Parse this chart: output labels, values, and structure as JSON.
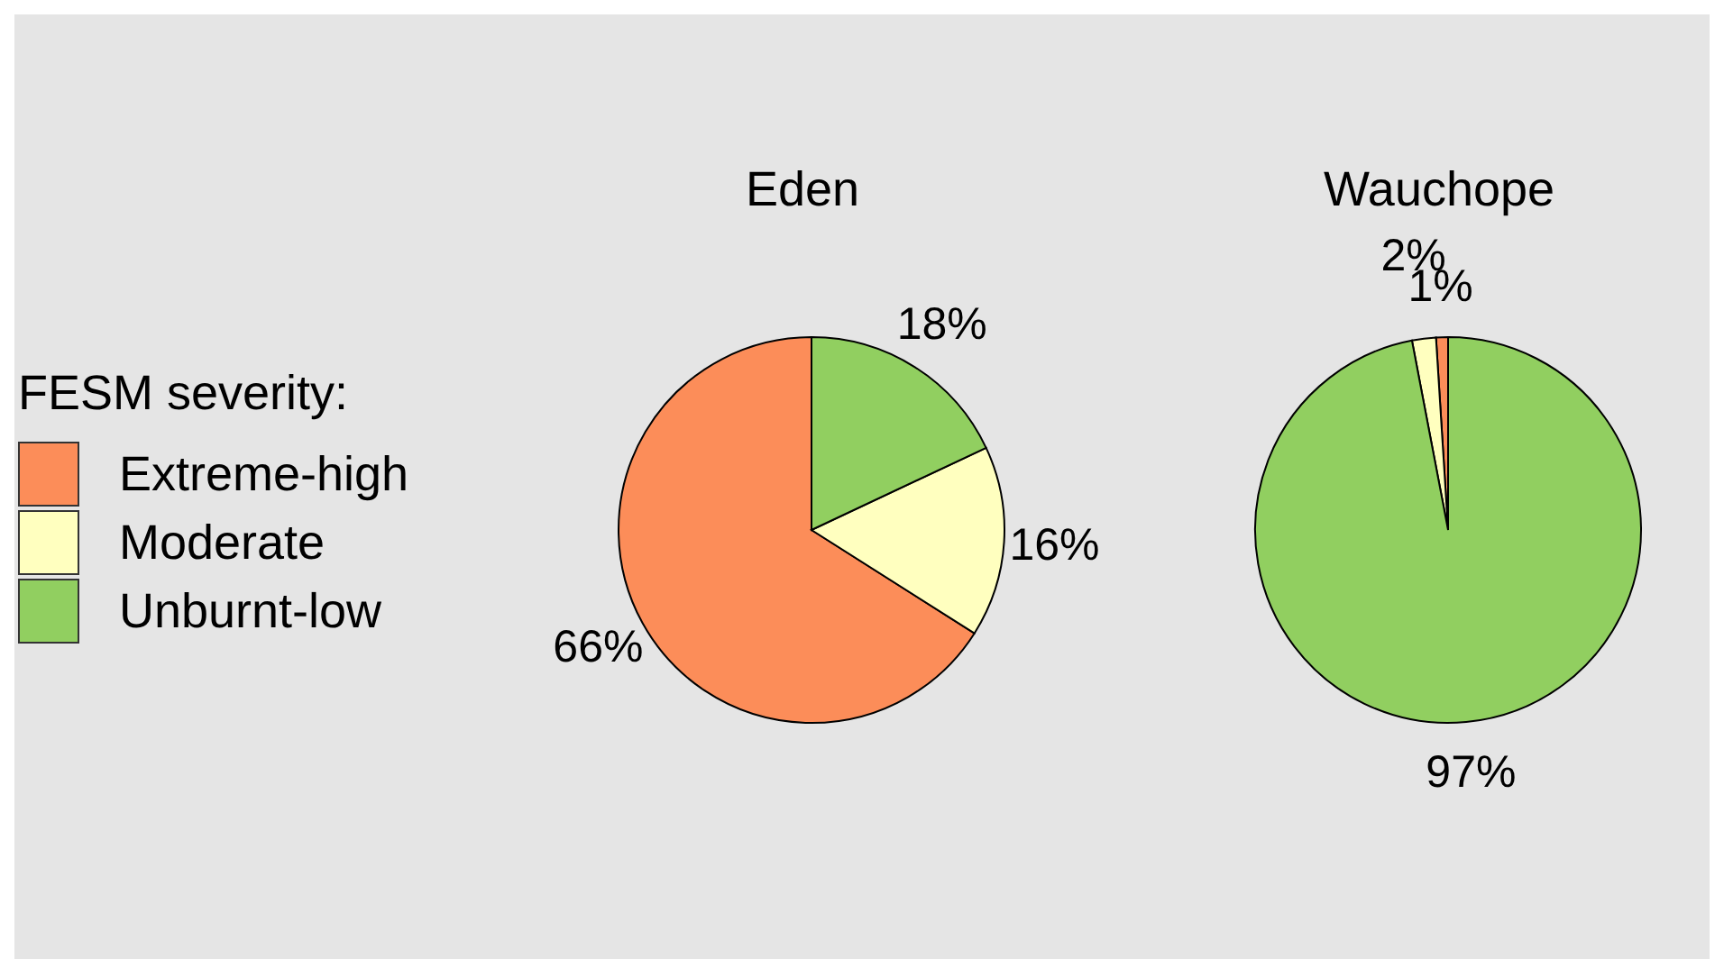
{
  "chart_data": [
    {
      "type": "pie",
      "title": "Eden",
      "categories": [
        "Extreme-high",
        "Moderate",
        "Unburnt-low"
      ],
      "values": [
        66,
        16,
        18
      ],
      "colors": [
        "#fc8d59",
        "#ffffbf",
        "#91cf60"
      ],
      "value_labels": [
        "66%",
        "16%",
        "18%"
      ],
      "legend": "left",
      "legend_title": "FESM severity:"
    },
    {
      "type": "pie",
      "title": "Wauchope",
      "categories": [
        null,
        null,
        null
      ],
      "values": [
        1,
        2,
        97
      ],
      "colors": [
        "#fc8d59",
        "#ffffbf",
        "#91cf60"
      ],
      "value_labels": [
        "1%",
        "2%",
        "97%"
      ],
      "legend": false
    }
  ]
}
